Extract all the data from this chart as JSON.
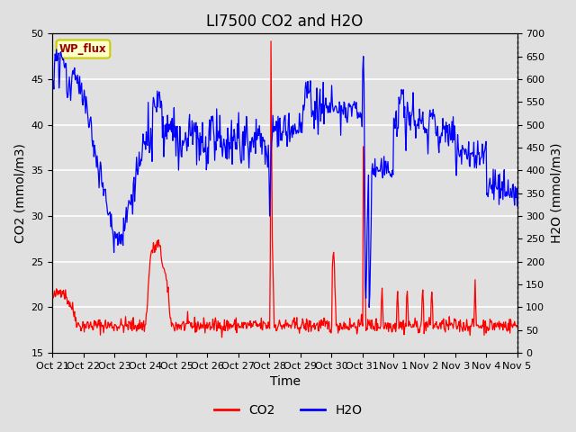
{
  "title": "LI7500 CO2 and H2O",
  "xlabel": "Time",
  "ylabel_left": "CO2 (mmol/m3)",
  "ylabel_right": "H2O (mmol/m3)",
  "ylim_left": [
    15,
    50
  ],
  "ylim_right": [
    0,
    700
  ],
  "yticks_left": [
    15,
    20,
    25,
    30,
    35,
    40,
    45,
    50
  ],
  "yticks_right": [
    0,
    50,
    100,
    150,
    200,
    250,
    300,
    350,
    400,
    450,
    500,
    550,
    600,
    650,
    700
  ],
  "xtick_labels": [
    "Oct 21",
    "Oct 22",
    "Oct 23",
    "Oct 24",
    "Oct 25",
    "Oct 26",
    "Oct 27",
    "Oct 28",
    "Oct 29",
    "Oct 30",
    "Oct 31",
    "Nov 1",
    "Nov 2",
    "Nov 3",
    "Nov 4",
    "Nov 5"
  ],
  "n_days": 15,
  "co2_color": "#FF0000",
  "h2o_color": "#0000FF",
  "background_color": "#E0E0E0",
  "grid_color": "#FFFFFF",
  "legend_label_co2": "CO2",
  "legend_label_h2o": "H2O",
  "watermark_text": "WP_flux",
  "watermark_bg": "#FFFFCC",
  "watermark_border": "#CCCC00",
  "watermark_text_color": "#990000",
  "title_fontsize": 12,
  "axis_label_fontsize": 10,
  "tick_fontsize": 8
}
